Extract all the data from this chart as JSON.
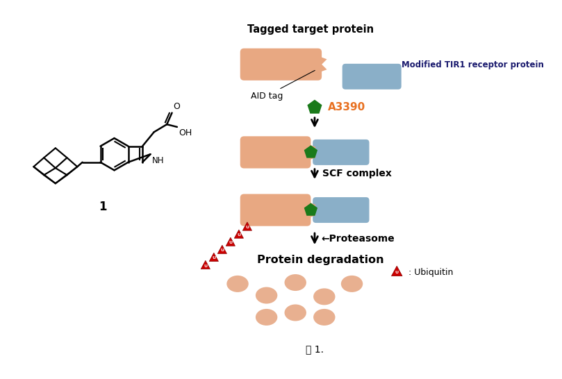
{
  "bg_color": "#ffffff",
  "fig_caption": "図 1.",
  "title_right": "Tagged target protein",
  "label_tir1": "Modified TIR1 receptor protein",
  "label_aid": "AID tag",
  "label_a3390": "A3390",
  "label_scf": "SCF complex",
  "label_proteasome": "←Proteasome",
  "label_protein_deg": "Protein degradation",
  "label_ubiquitin": ": Ubiquitin",
  "salmon_color": "#E8A882",
  "blue_color": "#8AAFC8",
  "green_color": "#1A7A1A",
  "red_color": "#CC0000",
  "dark_navy": "#1A1A6E",
  "orange_color": "#E87020",
  "black": "#000000"
}
